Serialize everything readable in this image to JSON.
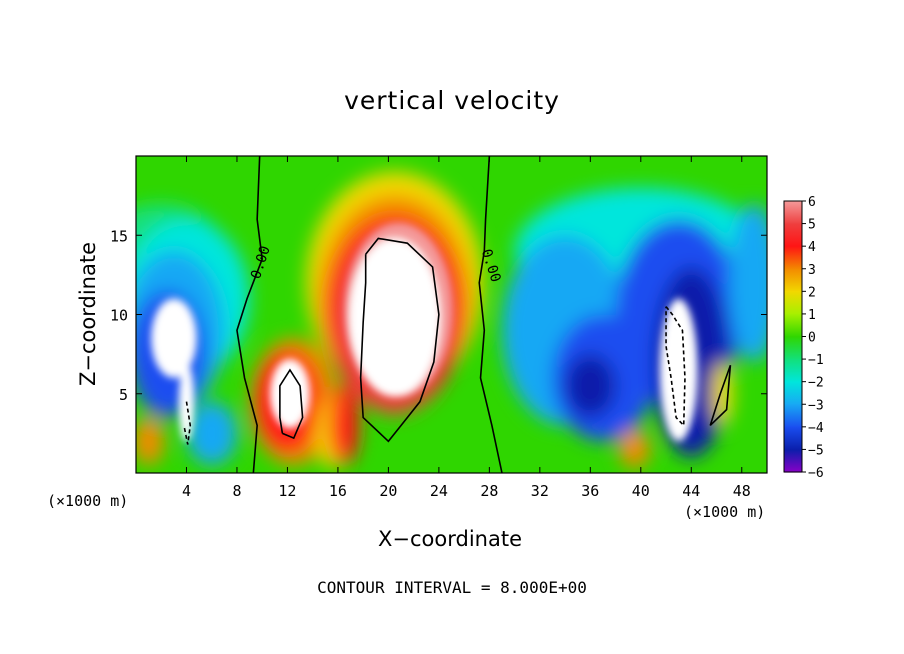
{
  "chart_data": {
    "type": "heatmap",
    "title": "vertical velocity",
    "xlabel": "X−coordinate",
    "ylabel": "Z−coordinate",
    "x_unit_label": "(×1000 m)",
    "footer": "CONTOUR INTERVAL = 8.000E+00",
    "xlim": [
      0,
      50
    ],
    "ylim": [
      0,
      20
    ],
    "x_ticks": [
      4,
      8,
      12,
      16,
      20,
      24,
      28,
      32,
      36,
      40,
      44,
      48
    ],
    "y_ticks": [
      5,
      10,
      15
    ],
    "colorbar": {
      "min": -6,
      "max": 6,
      "tick_labels": [
        "6",
        "5",
        "4",
        "3",
        "2",
        "1",
        "0",
        "−1",
        "−2",
        "−3",
        "−4",
        "−5",
        "−6"
      ]
    },
    "contour_labels": [
      "0.00",
      "0.00"
    ],
    "features": [
      {
        "x": 20.5,
        "z": 11.5,
        "w": 6,
        "note": "updraft core"
      },
      {
        "x": 12.0,
        "z": 5.0,
        "w": 6,
        "note": "updraft"
      },
      {
        "x": 3.5,
        "z": 7.5,
        "w": -6,
        "note": "downdraft core"
      },
      {
        "x": 43.0,
        "z": 7.0,
        "w": -6,
        "note": "downdraft core"
      },
      {
        "x": 36.0,
        "z": 5.5,
        "w": -5,
        "note": "downdraft"
      }
    ],
    "colors": {
      "pos6": "#f49a9a",
      "pos5": "#ef3f3f",
      "pos4": "#ff1414",
      "pos3": "#f38a00",
      "pos2": "#f2d800",
      "pos1": "#a6f000",
      "zero": "#2fd600",
      "neg1": "#12e07a",
      "neg2": "#00e6dc",
      "neg3": "#18a8f4",
      "neg4": "#1a4ef0",
      "neg5": "#0a1eaa",
      "neg6": "#8a00c8"
    }
  }
}
